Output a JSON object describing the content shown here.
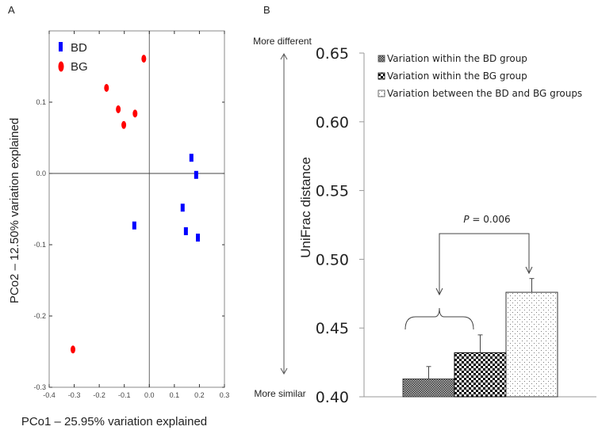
{
  "chart_data": [
    {
      "type": "scatter",
      "panel_label": "A",
      "xlabel": "PCo1 – 25.95% variation explained",
      "ylabel": "PCo2 – 12.50% variation explained",
      "xlim": [
        -0.4,
        0.3
      ],
      "ylim": [
        -0.3,
        0.2
      ],
      "x_ticks": [
        -0.4,
        -0.3,
        -0.2,
        -0.1,
        0.0,
        0.1,
        0.2,
        0.3
      ],
      "x_tick_labels": [
        "-0.4",
        "-0.3",
        "-0.2",
        "-0.1",
        "0.0",
        "0.1",
        "0.2",
        "0.3"
      ],
      "y_ticks": [
        0.1,
        0.0,
        -0.1,
        -0.2,
        -0.3
      ],
      "y_tick_labels": [
        "0.1",
        "0.0",
        "-0.1",
        "-0.2",
        "-0.3"
      ],
      "legend_position": "top-left",
      "series": [
        {
          "name": "BD",
          "color": "#0000ff",
          "marker": "rect",
          "points": [
            {
              "x": 0.168,
              "y": 0.022
            },
            {
              "x": 0.187,
              "y": -0.002
            },
            {
              "x": 0.133,
              "y": -0.048
            },
            {
              "x": -0.06,
              "y": -0.073
            },
            {
              "x": 0.146,
              "y": -0.081
            },
            {
              "x": 0.194,
              "y": -0.09
            }
          ]
        },
        {
          "name": "BG",
          "color": "#ff0000",
          "marker": "ellipse",
          "points": [
            {
              "x": -0.022,
              "y": 0.161
            },
            {
              "x": -0.171,
              "y": 0.12
            },
            {
              "x": -0.124,
              "y": 0.09
            },
            {
              "x": -0.057,
              "y": 0.084
            },
            {
              "x": -0.102,
              "y": 0.068
            },
            {
              "x": -0.305,
              "y": -0.247
            }
          ]
        }
      ]
    },
    {
      "type": "bar",
      "panel_label": "B",
      "ylabel": "UniFrac distance",
      "ylim": [
        0.4,
        0.65
      ],
      "y_ticks": [
        0.65,
        0.6,
        0.55,
        0.5,
        0.45,
        0.4
      ],
      "y_tick_labels": [
        "0.65",
        "0.60",
        "0.55",
        "0.50",
        "0.45",
        "0.40"
      ],
      "scale_top_label": "More different",
      "scale_bottom_label": "More similar",
      "legend_position": "top-right",
      "categories": [
        "Variation within the BD group",
        "Variation within the BG group",
        "Variation between the BD and BG groups"
      ],
      "patterns": [
        "fine-check",
        "coarse-check",
        "dots"
      ],
      "values": [
        0.413,
        0.432,
        0.476
      ],
      "error_upper": [
        0.422,
        0.445,
        0.486
      ],
      "annotation": {
        "text_italic": "P",
        "text_rest": " = 0.006",
        "compares": [
          "within groups",
          "Variation between the BD and BG groups"
        ]
      }
    }
  ]
}
